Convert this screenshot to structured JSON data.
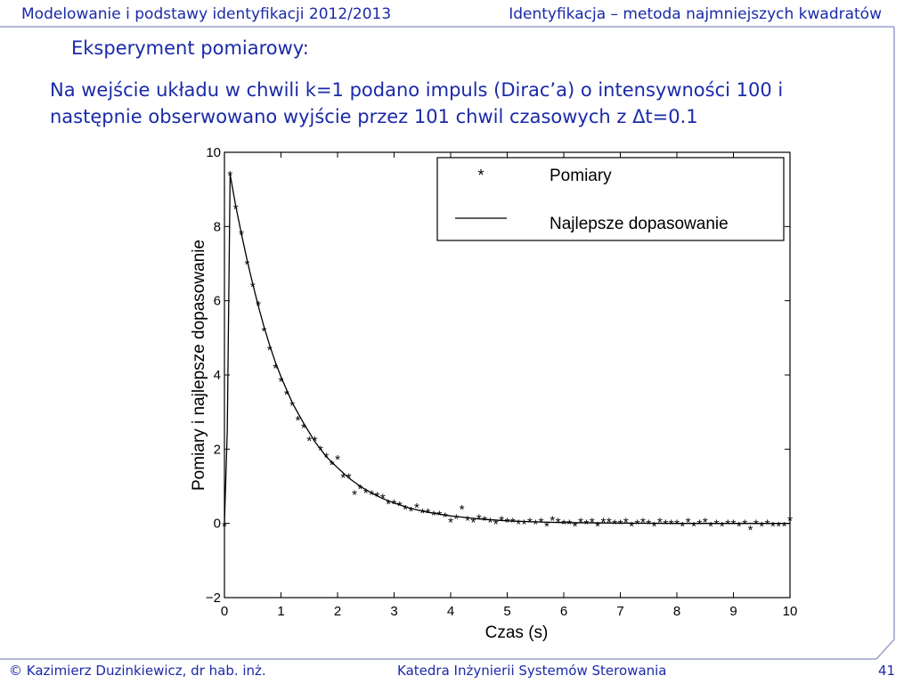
{
  "header": {
    "left": "Modelowanie i podstawy identyfikacji 2012/2013",
    "right": "Identyfikacja – metoda najmniejszych kwadratów"
  },
  "slide": {
    "title": "Eksperyment pomiarowy:",
    "description": "Na wejście układu w chwili k=1 podano impuls (Dirac’a) o intensywności 100 i następnie obserwowano wyjście przez 101 chwil czasowych z Δt=0.1"
  },
  "footer": {
    "author": "© Kazimierz Duzinkiewicz, dr hab. inż.",
    "department": "Katedra Inżynierii Systemów Sterowania",
    "page": "41"
  },
  "colors": {
    "accent": "#1a2aa8",
    "frame": "#9aa0c8"
  },
  "chart_data": {
    "type": "line",
    "xlabel": "Czas (s)",
    "ylabel": "Pomiary i najlepsze dopasowanie",
    "xlim": [
      0,
      10
    ],
    "ylim": [
      -2,
      10
    ],
    "xticks": [
      0,
      1,
      2,
      3,
      4,
      5,
      6,
      7,
      8,
      9,
      10
    ],
    "yticks": [
      -2,
      0,
      2,
      4,
      6,
      8,
      10
    ],
    "xtick_labels": [
      "0",
      "1",
      "2",
      "3",
      "4",
      "5",
      "6",
      "7",
      "8",
      "9",
      "10"
    ],
    "ytick_labels": [
      "−2",
      "0",
      "2",
      "4",
      "6",
      "8",
      "10"
    ],
    "legend_position": "top-right",
    "series": [
      {
        "name": "Pomiary",
        "marker": "*",
        "x": [
          0,
          0.1,
          0.2,
          0.3,
          0.4,
          0.5,
          0.6,
          0.7,
          0.8,
          0.9,
          1.0,
          1.1,
          1.2,
          1.3,
          1.4,
          1.5,
          1.6,
          1.7,
          1.8,
          1.9,
          2.0,
          2.1,
          2.2,
          2.3,
          2.4,
          2.5,
          2.6,
          2.7,
          2.8,
          2.9,
          3.0,
          3.1,
          3.2,
          3.3,
          3.4,
          3.5,
          3.6,
          3.7,
          3.8,
          3.9,
          4.0,
          4.1,
          4.2,
          4.3,
          4.4,
          4.5,
          4.6,
          4.7,
          4.8,
          4.9,
          5.0,
          5.1,
          5.2,
          5.3,
          5.4,
          5.5,
          5.6,
          5.7,
          5.8,
          5.9,
          6.0,
          6.1,
          6.2,
          6.3,
          6.4,
          6.5,
          6.6,
          6.7,
          6.8,
          6.9,
          7.0,
          7.1,
          7.2,
          7.3,
          7.4,
          7.5,
          7.6,
          7.7,
          7.8,
          7.9,
          8.0,
          8.1,
          8.2,
          8.3,
          8.4,
          8.5,
          8.6,
          8.7,
          8.8,
          8.9,
          9.0,
          9.1,
          9.2,
          9.3,
          9.4,
          9.5,
          9.6,
          9.7,
          9.8,
          9.9,
          10.0
        ],
        "y": [
          -0.05,
          9.4,
          8.5,
          7.8,
          7.0,
          6.4,
          5.9,
          5.2,
          4.7,
          4.2,
          3.85,
          3.5,
          3.2,
          2.8,
          2.6,
          2.25,
          2.25,
          2.0,
          1.8,
          1.6,
          1.75,
          1.25,
          1.25,
          0.8,
          0.95,
          0.85,
          0.8,
          0.75,
          0.7,
          0.55,
          0.55,
          0.5,
          0.4,
          0.35,
          0.45,
          0.3,
          0.3,
          0.25,
          0.25,
          0.2,
          0.05,
          0.15,
          0.4,
          0.1,
          0.05,
          0.15,
          0.1,
          0.05,
          0.0,
          0.1,
          0.05,
          0.05,
          0.0,
          0.0,
          0.05,
          0.0,
          0.05,
          -0.05,
          0.1,
          0.05,
          0.0,
          0.0,
          -0.05,
          0.05,
          0.0,
          0.05,
          -0.05,
          0.05,
          0.05,
          0.0,
          0.0,
          0.05,
          -0.05,
          0.0,
          0.05,
          0.0,
          -0.05,
          0.05,
          0.0,
          0.0,
          0.0,
          -0.05,
          0.05,
          -0.05,
          0.0,
          0.05,
          -0.05,
          0.0,
          -0.05,
          0.0,
          0.0,
          -0.05,
          0.0,
          -0.15,
          0.0,
          -0.05,
          0.0,
          -0.05,
          -0.05,
          -0.05,
          0.1
        ]
      },
      {
        "name": "Najlepsze dopasowanie",
        "x": [
          0,
          0.05,
          0.1,
          0.2,
          0.3,
          0.4,
          0.5,
          0.6,
          0.7,
          0.8,
          0.9,
          1.0,
          1.2,
          1.4,
          1.6,
          1.8,
          2.0,
          2.2,
          2.4,
          2.6,
          2.8,
          3.0,
          3.3,
          3.6,
          4.0,
          4.5,
          5.0,
          5.5,
          6.0,
          7.0,
          8.0,
          9.0,
          10.0
        ],
        "y": [
          0,
          2.5,
          9.4,
          8.55,
          7.8,
          7.1,
          6.45,
          5.85,
          5.3,
          4.8,
          4.35,
          3.95,
          3.25,
          2.7,
          2.2,
          1.8,
          1.5,
          1.22,
          1.0,
          0.82,
          0.67,
          0.55,
          0.4,
          0.3,
          0.2,
          0.12,
          0.07,
          0.04,
          0.02,
          0.01,
          0.0,
          0.0,
          0.0
        ]
      }
    ]
  }
}
